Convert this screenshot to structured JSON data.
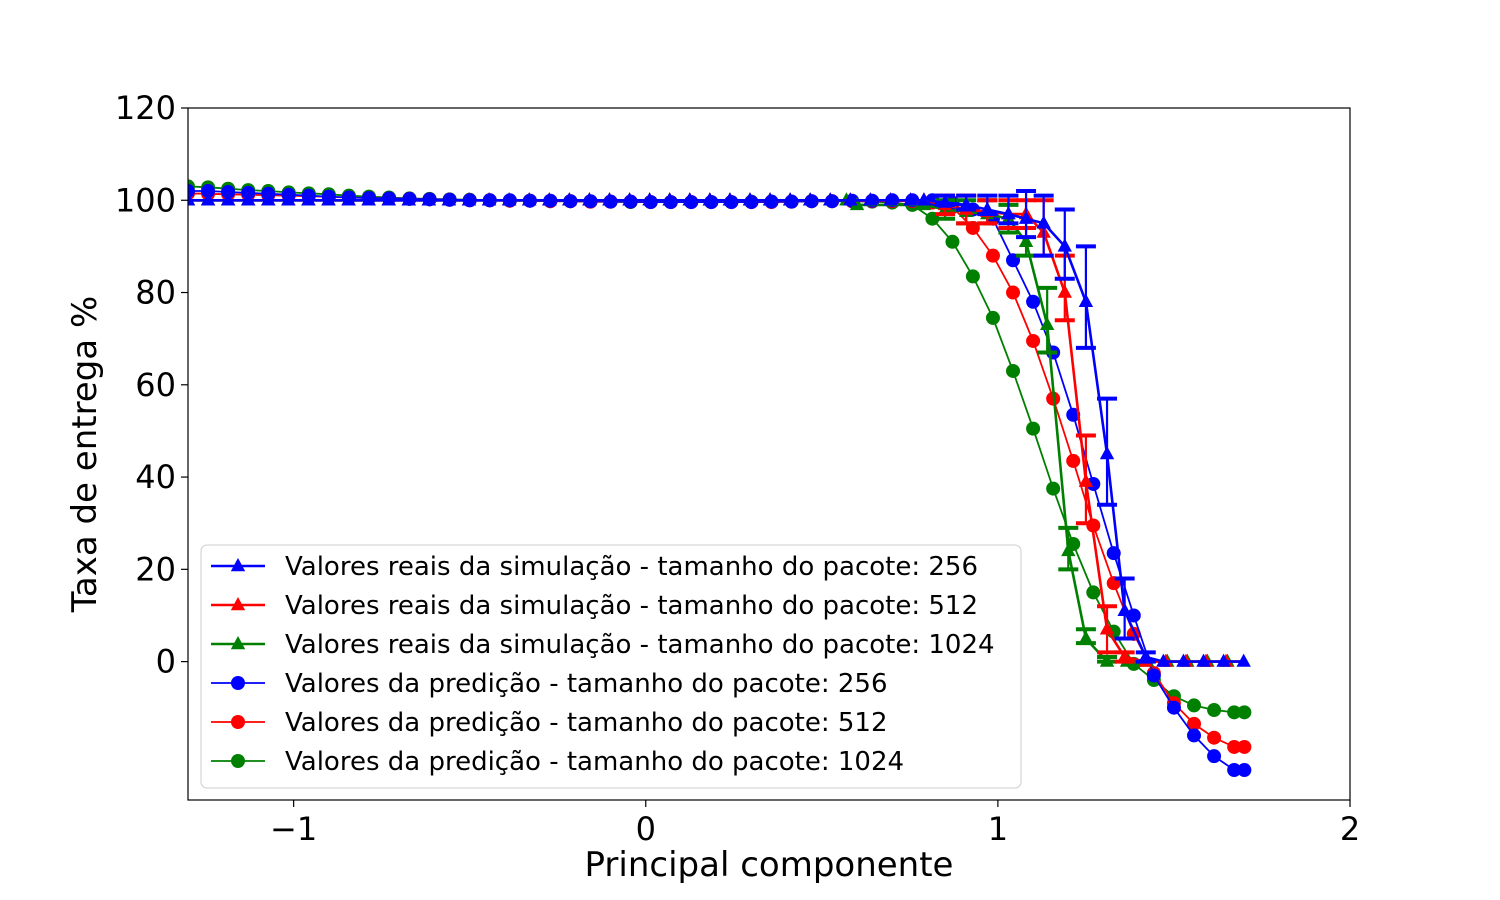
{
  "chart_data": {
    "type": "line",
    "title": "",
    "xlabel": "Principal componente",
    "ylabel": "Taxa de entrega %",
    "xlim": [
      -1.3,
      2.0
    ],
    "ylim": [
      -30,
      120
    ],
    "xticks": [
      -1,
      0,
      1,
      2
    ],
    "xtick_labels": [
      "−1",
      "0",
      "1",
      "2"
    ],
    "yticks": [
      0,
      20,
      40,
      60,
      80,
      100,
      120
    ],
    "ytick_labels": [
      "0",
      "20",
      "40",
      "60",
      "80",
      "100",
      "120"
    ],
    "grid": false,
    "legend_position": "bottom-left",
    "colors": {
      "blue": "#0000ff",
      "red": "#ff0000",
      "green": "#008000"
    },
    "x": [
      -1.3,
      -1.243,
      -1.186,
      -1.129,
      -1.072,
      -1.014,
      -0.957,
      -0.9,
      -0.843,
      -0.786,
      -0.729,
      -0.671,
      -0.614,
      -0.557,
      -0.5,
      -0.443,
      -0.386,
      -0.329,
      -0.271,
      -0.214,
      -0.157,
      -0.1,
      -0.043,
      0.014,
      0.071,
      0.129,
      0.186,
      0.243,
      0.3,
      0.357,
      0.414,
      0.471,
      0.529,
      0.586,
      0.643,
      0.7,
      0.757,
      0.814,
      0.871,
      0.929,
      0.986,
      1.043,
      1.1,
      1.157,
      1.214,
      1.271,
      1.329,
      1.386,
      1.443,
      1.5,
      1.557,
      1.614,
      1.671,
      1.7
    ],
    "series": [
      {
        "name": "Valores reais da simulação - tamanho do pacote: 256",
        "color": "#0000ff",
        "marker": "triangle",
        "points": [
          [
            -1.3,
            100
          ],
          [
            0.79,
            100
          ],
          [
            0.85,
            99.5
          ],
          [
            0.91,
            99
          ],
          [
            0.97,
            98
          ],
          [
            1.03,
            97
          ],
          [
            1.08,
            96
          ],
          [
            1.13,
            95
          ],
          [
            1.19,
            90
          ],
          [
            1.25,
            78
          ],
          [
            1.31,
            45
          ],
          [
            1.36,
            11
          ],
          [
            1.42,
            1
          ],
          [
            1.47,
            0
          ],
          [
            1.7,
            0
          ]
        ],
        "errors": [
          [
            0.85,
            99,
            101
          ],
          [
            0.91,
            98,
            101
          ],
          [
            0.97,
            97,
            101
          ],
          [
            1.03,
            95,
            101
          ],
          [
            1.08,
            92,
            102
          ],
          [
            1.13,
            88,
            101
          ],
          [
            1.19,
            83,
            98
          ],
          [
            1.25,
            68,
            90
          ],
          [
            1.31,
            34,
            57
          ],
          [
            1.36,
            5,
            18
          ],
          [
            1.42,
            0,
            2
          ]
        ]
      },
      {
        "name": "Valores reais da simulação - tamanho do pacote: 512",
        "color": "#ff0000",
        "marker": "triangle",
        "points": [
          [
            -1.3,
            100
          ],
          [
            0.79,
            100
          ],
          [
            0.85,
            99
          ],
          [
            0.91,
            98
          ],
          [
            0.97,
            97.5
          ],
          [
            1.03,
            97
          ],
          [
            1.08,
            97
          ],
          [
            1.13,
            93
          ],
          [
            1.19,
            80
          ],
          [
            1.25,
            39
          ],
          [
            1.31,
            7
          ],
          [
            1.36,
            1
          ],
          [
            1.42,
            0
          ],
          [
            1.7,
            0
          ]
        ],
        "errors": [
          [
            0.85,
            97,
            101
          ],
          [
            0.91,
            95,
            101
          ],
          [
            0.97,
            95,
            100
          ],
          [
            1.03,
            94,
            100
          ],
          [
            1.08,
            94,
            100
          ],
          [
            1.13,
            88,
            100
          ],
          [
            1.19,
            74,
            88
          ],
          [
            1.25,
            30,
            49
          ],
          [
            1.31,
            2,
            12
          ],
          [
            1.36,
            0,
            2
          ]
        ]
      },
      {
        "name": "Valores reais da simulação - tamanho do pacote: 1024",
        "color": "#008000",
        "marker": "triangle",
        "points": [
          [
            -1.3,
            100
          ],
          [
            0.57,
            100
          ],
          [
            0.6,
            99
          ],
          [
            0.79,
            99
          ],
          [
            0.85,
            98
          ],
          [
            0.91,
            97.5
          ],
          [
            0.97,
            97
          ],
          [
            1.03,
            96
          ],
          [
            1.08,
            91
          ],
          [
            1.14,
            73
          ],
          [
            1.2,
            24
          ],
          [
            1.25,
            5
          ],
          [
            1.31,
            0
          ],
          [
            1.7,
            0
          ]
        ],
        "errors": [
          [
            0.85,
            96,
            100
          ],
          [
            0.91,
            95,
            100
          ],
          [
            0.97,
            95,
            100
          ],
          [
            1.03,
            93,
            99
          ],
          [
            1.08,
            88,
            94
          ],
          [
            1.14,
            67,
            81
          ],
          [
            1.2,
            20,
            29
          ],
          [
            1.25,
            4,
            7
          ],
          [
            1.31,
            0,
            1
          ]
        ]
      },
      {
        "name": "Valores da predição - tamanho do pacote: 256",
        "color": "#0000ff",
        "marker": "circle",
        "points": [
          [
            -1.3,
            102
          ],
          [
            -1.243,
            102
          ],
          [
            -1.186,
            101.8
          ],
          [
            -1.129,
            101.6
          ],
          [
            -1.072,
            101.4
          ],
          [
            -1.014,
            101.2
          ],
          [
            -0.957,
            101
          ],
          [
            -0.9,
            100.8
          ],
          [
            -0.843,
            100.6
          ],
          [
            -0.786,
            100.5
          ],
          [
            -0.729,
            100.4
          ],
          [
            -0.671,
            100.3
          ],
          [
            -0.614,
            100.2
          ],
          [
            -0.557,
            100.1
          ],
          [
            -0.5,
            100
          ],
          [
            -0.443,
            100
          ],
          [
            -0.386,
            100
          ],
          [
            -0.329,
            99.9
          ],
          [
            -0.271,
            99.9
          ],
          [
            -0.214,
            99.8
          ],
          [
            -0.157,
            99.8
          ],
          [
            -0.1,
            99.7
          ],
          [
            -0.043,
            99.7
          ],
          [
            0.014,
            99.6
          ],
          [
            0.071,
            99.6
          ],
          [
            0.129,
            99.6
          ],
          [
            0.186,
            99.6
          ],
          [
            0.243,
            99.6
          ],
          [
            0.3,
            99.6
          ],
          [
            0.357,
            99.7
          ],
          [
            0.414,
            99.7
          ],
          [
            0.471,
            99.8
          ],
          [
            0.529,
            99.8
          ],
          [
            0.586,
            99.9
          ],
          [
            0.643,
            99.9
          ],
          [
            0.7,
            100
          ],
          [
            0.757,
            100
          ],
          [
            0.814,
            100
          ],
          [
            0.871,
            99.5
          ],
          [
            0.929,
            98
          ],
          [
            0.986,
            96
          ],
          [
            1.043,
            87
          ],
          [
            1.1,
            78
          ],
          [
            1.157,
            67
          ],
          [
            1.214,
            53.5
          ],
          [
            1.271,
            38.5
          ],
          [
            1.329,
            23.5
          ],
          [
            1.386,
            10
          ],
          [
            1.443,
            -3
          ],
          [
            1.5,
            -10
          ],
          [
            1.557,
            -16
          ],
          [
            1.614,
            -20.5
          ],
          [
            1.671,
            -23.5
          ],
          [
            1.7,
            -23.5
          ]
        ]
      },
      {
        "name": "Valores da predição - tamanho do pacote: 512",
        "color": "#ff0000",
        "marker": "circle",
        "points": [
          [
            -1.3,
            101.5
          ],
          [
            -1.243,
            101.4
          ],
          [
            -1.186,
            101.3
          ],
          [
            -1.129,
            101.2
          ],
          [
            -1.072,
            101.1
          ],
          [
            -1.014,
            101
          ],
          [
            -0.957,
            100.9
          ],
          [
            -0.9,
            100.7
          ],
          [
            -0.843,
            100.6
          ],
          [
            -0.786,
            100.5
          ],
          [
            -0.729,
            100.4
          ],
          [
            -0.671,
            100.3
          ],
          [
            -0.614,
            100.2
          ],
          [
            -0.557,
            100.1
          ],
          [
            -0.5,
            100
          ],
          [
            -0.443,
            100
          ],
          [
            -0.386,
            99.9
          ],
          [
            -0.329,
            99.9
          ],
          [
            -0.271,
            99.8
          ],
          [
            -0.214,
            99.8
          ],
          [
            -0.157,
            99.7
          ],
          [
            -0.1,
            99.7
          ],
          [
            -0.043,
            99.7
          ],
          [
            0.014,
            99.6
          ],
          [
            0.071,
            99.6
          ],
          [
            0.129,
            99.6
          ],
          [
            0.186,
            99.6
          ],
          [
            0.243,
            99.6
          ],
          [
            0.3,
            99.6
          ],
          [
            0.357,
            99.6
          ],
          [
            0.414,
            99.7
          ],
          [
            0.471,
            99.8
          ],
          [
            0.529,
            99.8
          ],
          [
            0.586,
            99.8
          ],
          [
            0.643,
            99.8
          ],
          [
            0.7,
            99.8
          ],
          [
            0.757,
            99.8
          ],
          [
            0.814,
            99.5
          ],
          [
            0.871,
            98.5
          ],
          [
            0.929,
            94
          ],
          [
            0.986,
            88
          ],
          [
            1.043,
            80
          ],
          [
            1.1,
            69.5
          ],
          [
            1.157,
            57
          ],
          [
            1.214,
            43.5
          ],
          [
            1.271,
            29.5
          ],
          [
            1.329,
            17
          ],
          [
            1.386,
            6
          ],
          [
            1.443,
            -2.5
          ],
          [
            1.5,
            -9
          ],
          [
            1.557,
            -13.5
          ],
          [
            1.614,
            -16.5
          ],
          [
            1.671,
            -18.5
          ],
          [
            1.7,
            -18.5
          ]
        ]
      },
      {
        "name": "Valores da predição - tamanho do pacote: 1024",
        "color": "#008000",
        "marker": "circle",
        "points": [
          [
            -1.3,
            103
          ],
          [
            -1.243,
            102.8
          ],
          [
            -1.186,
            102.5
          ],
          [
            -1.129,
            102.2
          ],
          [
            -1.072,
            102
          ],
          [
            -1.014,
            101.7
          ],
          [
            -0.957,
            101.5
          ],
          [
            -0.9,
            101.3
          ],
          [
            -0.843,
            101
          ],
          [
            -0.786,
            100.8
          ],
          [
            -0.729,
            100.6
          ],
          [
            -0.671,
            100.4
          ],
          [
            -0.614,
            100.3
          ],
          [
            -0.557,
            100.2
          ],
          [
            -0.5,
            100.1
          ],
          [
            -0.443,
            100
          ],
          [
            -0.386,
            99.9
          ],
          [
            -0.329,
            99.9
          ],
          [
            -0.271,
            99.8
          ],
          [
            -0.214,
            99.8
          ],
          [
            -0.157,
            99.7
          ],
          [
            -0.1,
            99.7
          ],
          [
            -0.043,
            99.6
          ],
          [
            0.014,
            99.6
          ],
          [
            0.071,
            99.6
          ],
          [
            0.129,
            99.6
          ],
          [
            0.186,
            99.6
          ],
          [
            0.243,
            99.6
          ],
          [
            0.3,
            99.7
          ],
          [
            0.357,
            99.7
          ],
          [
            0.414,
            99.7
          ],
          [
            0.471,
            99.8
          ],
          [
            0.529,
            99.8
          ],
          [
            0.586,
            99.8
          ],
          [
            0.643,
            99.7
          ],
          [
            0.7,
            99.5
          ],
          [
            0.757,
            99
          ],
          [
            0.814,
            96
          ],
          [
            0.871,
            91
          ],
          [
            0.929,
            83.5
          ],
          [
            0.986,
            74.5
          ],
          [
            1.043,
            63
          ],
          [
            1.1,
            50.5
          ],
          [
            1.157,
            37.5
          ],
          [
            1.214,
            25.5
          ],
          [
            1.271,
            15
          ],
          [
            1.329,
            6.5
          ],
          [
            1.386,
            -0.5
          ],
          [
            1.443,
            -4
          ],
          [
            1.5,
            -7.5
          ],
          [
            1.557,
            -9.5
          ],
          [
            1.614,
            -10.5
          ],
          [
            1.671,
            -11
          ],
          [
            1.7,
            -11
          ]
        ]
      }
    ]
  }
}
